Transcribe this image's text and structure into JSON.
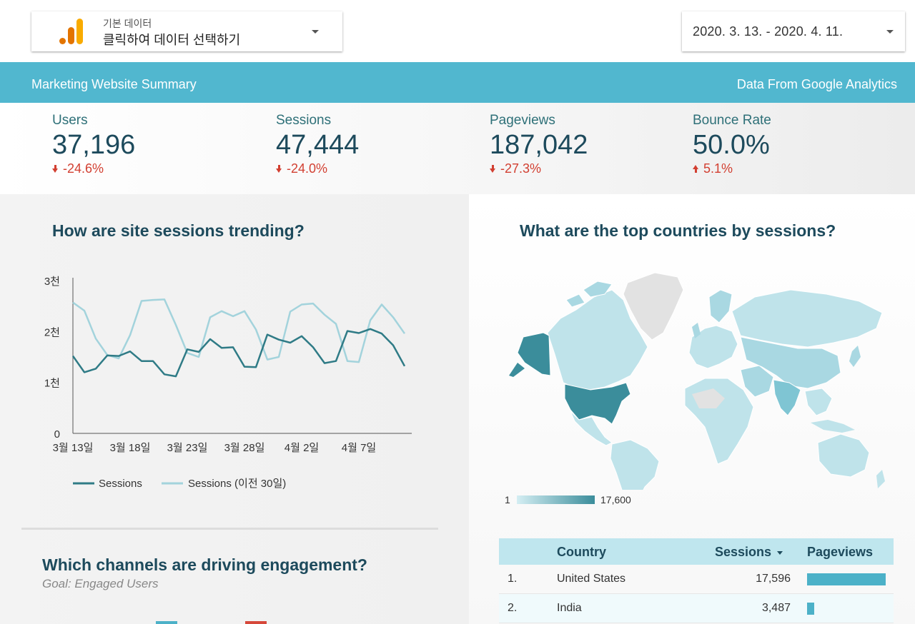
{
  "datasource": {
    "small_label": "기본 데이터",
    "main_label": "클릭하여 데이터 선택하기"
  },
  "date_range": "2020. 3. 13. - 2020. 4. 11.",
  "header": {
    "title": "Marketing Website Summary",
    "source": "Data From Google Analytics"
  },
  "kpis": [
    {
      "label": "Users",
      "value": "37,196",
      "delta": "-24.6%",
      "direction": "down"
    },
    {
      "label": "Sessions",
      "value": "47,444",
      "delta": "-24.0%",
      "direction": "down"
    },
    {
      "label": "Pageviews",
      "value": "187,042",
      "delta": "-27.3%",
      "direction": "down"
    },
    {
      "label": "Bounce Rate",
      "value": "50.0%",
      "delta": "5.1%",
      "direction": "up"
    }
  ],
  "sessions_chart": {
    "title": "How are site sessions trending?",
    "legend": {
      "current": "Sessions",
      "previous": "Sessions (이전 30일)"
    }
  },
  "channels": {
    "title": "Which channels are driving engagement?",
    "goal": "Goal: Engaged Users"
  },
  "countries": {
    "title": "What are the top countries by sessions?",
    "legend_min": "1",
    "legend_max": "17,600",
    "columns": {
      "country": "Country",
      "sessions": "Sessions",
      "pageviews": "Pageviews"
    },
    "rows": [
      {
        "rank": "1.",
        "country": "United States",
        "sessions": "17,596",
        "pageviews_share": 1.0
      },
      {
        "rank": "2.",
        "country": "India",
        "sessions": "3,487",
        "pageviews_share": 0.09
      }
    ]
  },
  "colors": {
    "accent": "#51b7cf",
    "current_series": "#2f7b86",
    "previous_series": "#a3d3dc",
    "negative": "#d23f31",
    "bar_legend_1": "#4cb1c8",
    "bar_legend_2": "#d6483a"
  },
  "chart_data": {
    "type": "line",
    "title": "How are site sessions trending?",
    "xlabel": "",
    "ylabel": "",
    "ylim": [
      0,
      3000
    ],
    "y_ticks": [
      "0",
      "1천",
      "2천",
      "3천"
    ],
    "x_tick_labels": [
      "3월 13일",
      "3월 18일",
      "3월 23일",
      "3월 28일",
      "4월 2일",
      "4월 7일"
    ],
    "x_tick_index": [
      0,
      5,
      10,
      15,
      20,
      25
    ],
    "grid": false,
    "legend_position": "bottom",
    "series": [
      {
        "name": "Sessions",
        "values": [
          1520,
          1200,
          1270,
          1530,
          1520,
          1610,
          1420,
          1420,
          1160,
          1120,
          1650,
          1600,
          1850,
          1680,
          1690,
          1310,
          1300,
          1940,
          1840,
          1780,
          1910,
          1690,
          1380,
          1420,
          2010,
          1970,
          2050,
          1960,
          1730,
          1320
        ]
      },
      {
        "name": "Sessions (이전 30일)",
        "values": [
          2570,
          2410,
          1860,
          1540,
          1470,
          1930,
          2600,
          2620,
          2630,
          2130,
          1580,
          1500,
          2280,
          2400,
          2300,
          2400,
          2040,
          1450,
          1500,
          2390,
          2530,
          2550,
          2330,
          2150,
          1420,
          1400,
          2220,
          2530,
          2280,
          1960
        ]
      }
    ]
  }
}
